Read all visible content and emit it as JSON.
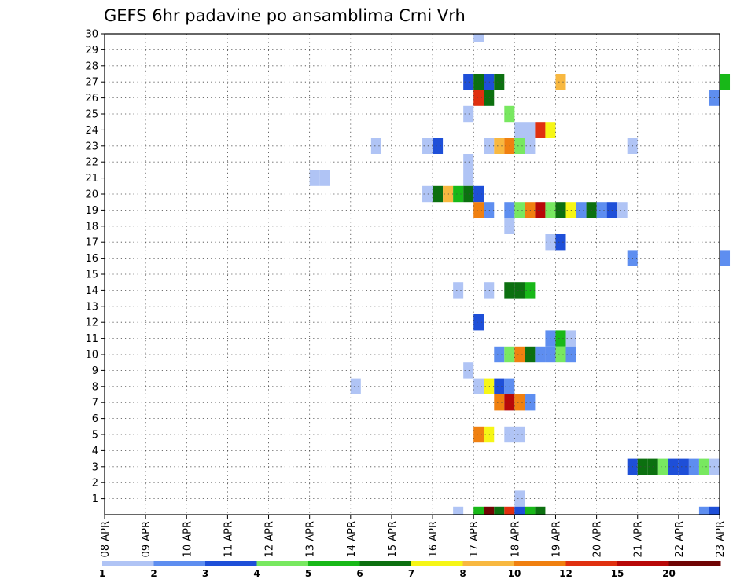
{
  "chart_data": {
    "type": "heatmap",
    "title": "GEFS 6hr padavine po ansamblima Crni Vrh",
    "xlabel": "",
    "ylabel": "",
    "x_tick_labels": [
      "08 APR",
      "09 APR",
      "10 APR",
      "11 APR",
      "12 APR",
      "13 APR",
      "14 APR",
      "15 APR",
      "16 APR",
      "17 APR",
      "18 APR",
      "19 APR",
      "20 APR",
      "21 APR",
      "22 APR",
      "23 APR"
    ],
    "y_tick_labels": [
      "1",
      "2",
      "3",
      "4",
      "5",
      "6",
      "7",
      "8",
      "9",
      "10",
      "11",
      "12",
      "13",
      "14",
      "15",
      "16",
      "17",
      "18",
      "19",
      "20",
      "21",
      "22",
      "23",
      "24",
      "25",
      "26",
      "27",
      "28",
      "29",
      "30"
    ],
    "x_range_days": [
      0,
      15
    ],
    "time_step_hours": 6,
    "y_range_members": [
      0,
      30
    ],
    "grid": true,
    "colorbar": {
      "levels": [
        "1",
        "2",
        "3",
        "4",
        "5",
        "6",
        "7",
        "8",
        "10",
        "12",
        "15",
        "20"
      ],
      "colors": [
        "#b0c4f5",
        "#5e8ef0",
        "#1e4fd8",
        "#78e860",
        "#18b818",
        "#0c7010",
        "#f6f616",
        "#f8b840",
        "#f08010",
        "#e03010",
        "#b80808",
        "#700404"
      ]
    },
    "cells": [
      {
        "member": 30,
        "day": 9,
        "h": 0,
        "c": 0
      },
      {
        "member": 27,
        "day": 8,
        "h": 18,
        "c": 2
      },
      {
        "member": 27,
        "day": 9,
        "h": 0,
        "c": 5
      },
      {
        "member": 27,
        "day": 9,
        "h": 6,
        "c": 2
      },
      {
        "member": 27,
        "day": 9,
        "h": 12,
        "c": 5
      },
      {
        "member": 27,
        "day": 11,
        "h": 0,
        "c": 7
      },
      {
        "member": 27,
        "day": 15,
        "h": 0,
        "c": 4
      },
      {
        "member": 26,
        "day": 9,
        "h": 0,
        "c": 9
      },
      {
        "member": 26,
        "day": 9,
        "h": 6,
        "c": 5
      },
      {
        "member": 26,
        "day": 14,
        "h": 18,
        "c": 1
      },
      {
        "member": 25,
        "day": 8,
        "h": 18,
        "c": 0
      },
      {
        "member": 25,
        "day": 9,
        "h": 18,
        "c": 3
      },
      {
        "member": 24,
        "day": 10,
        "h": 0,
        "c": 0
      },
      {
        "member": 24,
        "day": 10,
        "h": 6,
        "c": 0
      },
      {
        "member": 24,
        "day": 10,
        "h": 12,
        "c": 9
      },
      {
        "member": 24,
        "day": 10,
        "h": 18,
        "c": 6
      },
      {
        "member": 23,
        "day": 6,
        "h": 12,
        "c": 0
      },
      {
        "member": 23,
        "day": 7,
        "h": 18,
        "c": 0
      },
      {
        "member": 23,
        "day": 8,
        "h": 0,
        "c": 2
      },
      {
        "member": 23,
        "day": 9,
        "h": 6,
        "c": 0
      },
      {
        "member": 23,
        "day": 9,
        "h": 12,
        "c": 7
      },
      {
        "member": 23,
        "day": 9,
        "h": 18,
        "c": 8
      },
      {
        "member": 23,
        "day": 10,
        "h": 0,
        "c": 3
      },
      {
        "member": 23,
        "day": 10,
        "h": 6,
        "c": 0
      },
      {
        "member": 23,
        "day": 12,
        "h": 18,
        "c": 0
      },
      {
        "member": 22,
        "day": 8,
        "h": 18,
        "c": 0
      },
      {
        "member": 21,
        "day": 5,
        "h": 0,
        "c": 0
      },
      {
        "member": 21,
        "day": 5,
        "h": 6,
        "c": 0
      },
      {
        "member": 21,
        "day": 8,
        "h": 18,
        "c": 0
      },
      {
        "member": 20,
        "day": 7,
        "h": 18,
        "c": 0
      },
      {
        "member": 20,
        "day": 8,
        "h": 0,
        "c": 5
      },
      {
        "member": 20,
        "day": 8,
        "h": 6,
        "c": 7
      },
      {
        "member": 20,
        "day": 8,
        "h": 12,
        "c": 4
      },
      {
        "member": 20,
        "day": 8,
        "h": 18,
        "c": 5
      },
      {
        "member": 20,
        "day": 9,
        "h": 0,
        "c": 2
      },
      {
        "member": 19,
        "day": 9,
        "h": 0,
        "c": 8
      },
      {
        "member": 19,
        "day": 9,
        "h": 6,
        "c": 1
      },
      {
        "member": 19,
        "day": 9,
        "h": 18,
        "c": 1
      },
      {
        "member": 19,
        "day": 10,
        "h": 0,
        "c": 3
      },
      {
        "member": 19,
        "day": 10,
        "h": 6,
        "c": 8
      },
      {
        "member": 19,
        "day": 10,
        "h": 12,
        "c": 10
      },
      {
        "member": 19,
        "day": 10,
        "h": 18,
        "c": 3
      },
      {
        "member": 19,
        "day": 11,
        "h": 0,
        "c": 5
      },
      {
        "member": 19,
        "day": 11,
        "h": 6,
        "c": 6
      },
      {
        "member": 19,
        "day": 11,
        "h": 12,
        "c": 1
      },
      {
        "member": 19,
        "day": 11,
        "h": 18,
        "c": 5
      },
      {
        "member": 19,
        "day": 12,
        "h": 0,
        "c": 1
      },
      {
        "member": 19,
        "day": 12,
        "h": 6,
        "c": 2
      },
      {
        "member": 19,
        "day": 12,
        "h": 12,
        "c": 0
      },
      {
        "member": 18,
        "day": 9,
        "h": 18,
        "c": 0
      },
      {
        "member": 17,
        "day": 10,
        "h": 18,
        "c": 0
      },
      {
        "member": 17,
        "day": 11,
        "h": 0,
        "c": 2
      },
      {
        "member": 16,
        "day": 12,
        "h": 18,
        "c": 1
      },
      {
        "member": 16,
        "day": 15,
        "h": 0,
        "c": 1
      },
      {
        "member": 14,
        "day": 8,
        "h": 12,
        "c": 0
      },
      {
        "member": 14,
        "day": 9,
        "h": 6,
        "c": 0
      },
      {
        "member": 14,
        "day": 9,
        "h": 18,
        "c": 5
      },
      {
        "member": 14,
        "day": 10,
        "h": 0,
        "c": 5
      },
      {
        "member": 14,
        "day": 10,
        "h": 6,
        "c": 4
      },
      {
        "member": 12,
        "day": 9,
        "h": 0,
        "c": 2
      },
      {
        "member": 11,
        "day": 10,
        "h": 18,
        "c": 1
      },
      {
        "member": 11,
        "day": 11,
        "h": 0,
        "c": 4
      },
      {
        "member": 11,
        "day": 11,
        "h": 6,
        "c": 0
      },
      {
        "member": 10,
        "day": 9,
        "h": 12,
        "c": 1
      },
      {
        "member": 10,
        "day": 9,
        "h": 18,
        "c": 3
      },
      {
        "member": 10,
        "day": 10,
        "h": 0,
        "c": 8
      },
      {
        "member": 10,
        "day": 10,
        "h": 6,
        "c": 5
      },
      {
        "member": 10,
        "day": 10,
        "h": 12,
        "c": 1
      },
      {
        "member": 10,
        "day": 10,
        "h": 18,
        "c": 1
      },
      {
        "member": 10,
        "day": 11,
        "h": 0,
        "c": 3
      },
      {
        "member": 10,
        "day": 11,
        "h": 6,
        "c": 1
      },
      {
        "member": 9,
        "day": 8,
        "h": 18,
        "c": 0
      },
      {
        "member": 8,
        "day": 6,
        "h": 0,
        "c": 0
      },
      {
        "member": 8,
        "day": 9,
        "h": 0,
        "c": 0
      },
      {
        "member": 8,
        "day": 9,
        "h": 6,
        "c": 6
      },
      {
        "member": 8,
        "day": 9,
        "h": 12,
        "c": 2
      },
      {
        "member": 8,
        "day": 9,
        "h": 18,
        "c": 1
      },
      {
        "member": 7,
        "day": 9,
        "h": 12,
        "c": 8
      },
      {
        "member": 7,
        "day": 9,
        "h": 18,
        "c": 10
      },
      {
        "member": 7,
        "day": 10,
        "h": 0,
        "c": 8
      },
      {
        "member": 7,
        "day": 10,
        "h": 6,
        "c": 1
      },
      {
        "member": 5,
        "day": 9,
        "h": 0,
        "c": 8
      },
      {
        "member": 5,
        "day": 9,
        "h": 6,
        "c": 6
      },
      {
        "member": 5,
        "day": 9,
        "h": 18,
        "c": 0
      },
      {
        "member": 5,
        "day": 10,
        "h": 0,
        "c": 0
      },
      {
        "member": 3,
        "day": 12,
        "h": 18,
        "c": 2
      },
      {
        "member": 3,
        "day": 13,
        "h": 0,
        "c": 5
      },
      {
        "member": 3,
        "day": 13,
        "h": 6,
        "c": 5
      },
      {
        "member": 3,
        "day": 13,
        "h": 12,
        "c": 3
      },
      {
        "member": 3,
        "day": 13,
        "h": 18,
        "c": 2
      },
      {
        "member": 3,
        "day": 14,
        "h": 0,
        "c": 2
      },
      {
        "member": 3,
        "day": 14,
        "h": 6,
        "c": 1
      },
      {
        "member": 3,
        "day": 14,
        "h": 12,
        "c": 3
      },
      {
        "member": 3,
        "day": 14,
        "h": 18,
        "c": 0
      },
      {
        "member": 1,
        "day": 10,
        "h": 0,
        "c": 0
      },
      {
        "member": 0,
        "day": 8,
        "h": 12,
        "c": 0
      },
      {
        "member": 0,
        "day": 9,
        "h": 0,
        "c": 4
      },
      {
        "member": 0,
        "day": 9,
        "h": 6,
        "c": 11
      },
      {
        "member": 0,
        "day": 9,
        "h": 12,
        "c": 5
      },
      {
        "member": 0,
        "day": 9,
        "h": 18,
        "c": 9
      },
      {
        "member": 0,
        "day": 10,
        "h": 0,
        "c": 2
      },
      {
        "member": 0,
        "day": 10,
        "h": 6,
        "c": 4
      },
      {
        "member": 0,
        "day": 10,
        "h": 12,
        "c": 5
      },
      {
        "member": 0,
        "day": 14,
        "h": 12,
        "c": 1
      },
      {
        "member": 0,
        "day": 14,
        "h": 18,
        "c": 2
      }
    ]
  }
}
